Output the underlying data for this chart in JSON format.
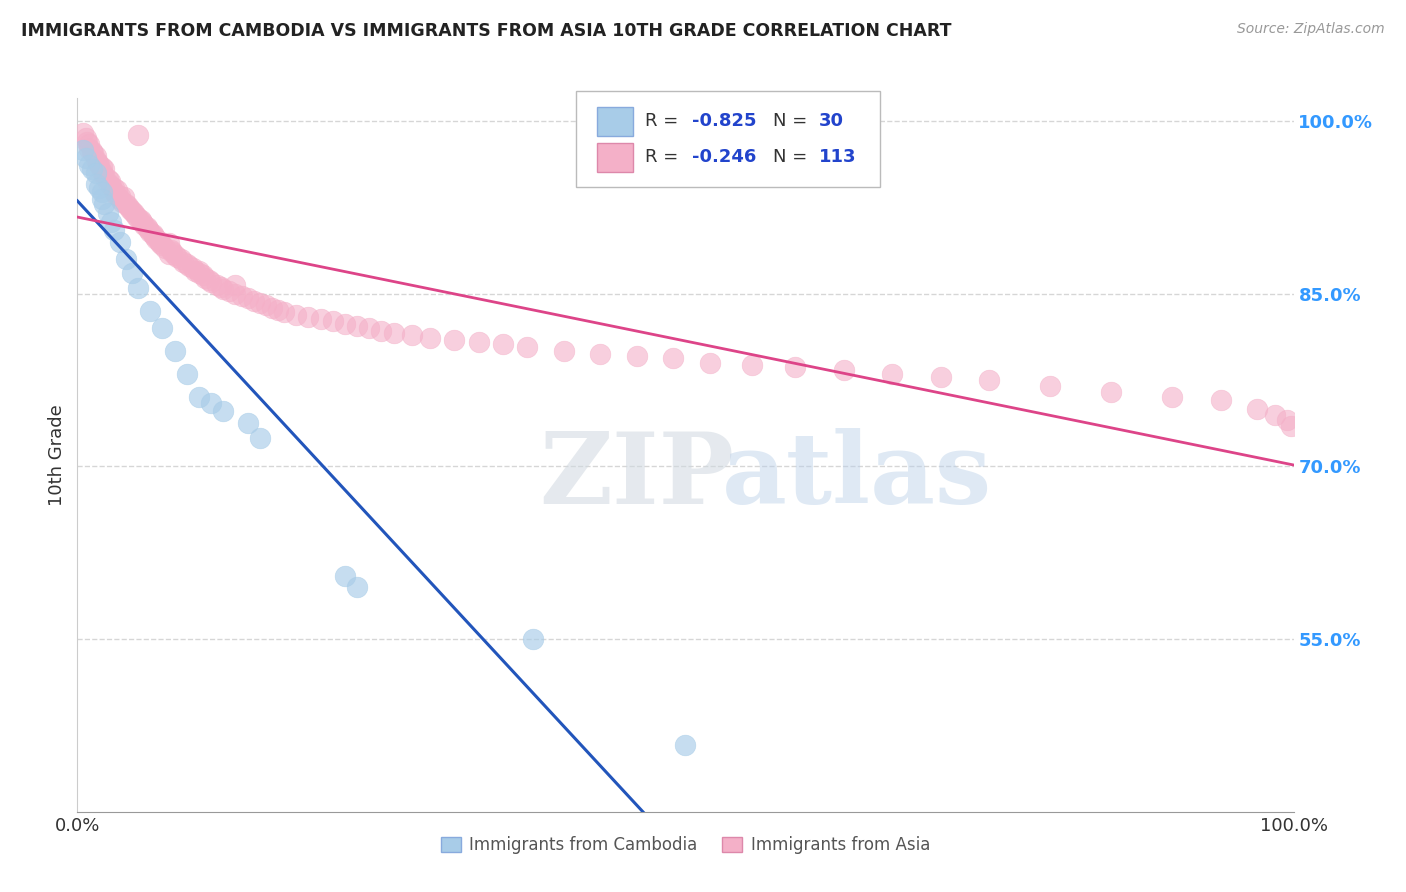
{
  "title": "IMMIGRANTS FROM CAMBODIA VS IMMIGRANTS FROM ASIA 10TH GRADE CORRELATION CHART",
  "source": "Source: ZipAtlas.com",
  "ylabel": "10th Grade",
  "R_blue": -0.825,
  "N_blue": 30,
  "R_pink": -0.246,
  "N_pink": 113,
  "blue_color": "#a8cce8",
  "pink_color": "#f4b0c8",
  "blue_line_color": "#2255bb",
  "pink_line_color": "#dd4488",
  "watermark_ZIP": "ZIP",
  "watermark_atlas": "atlas",
  "background_color": "#ffffff",
  "grid_color": "#cccccc",
  "legend_blue_label": "Immigrants from Cambodia",
  "legend_pink_label": "Immigrants from Asia",
  "xmin": 0.0,
  "xmax": 1.0,
  "ymin": 0.4,
  "ymax": 1.02,
  "yticks": [
    0.55,
    0.7,
    0.85,
    1.0
  ],
  "ytick_labels": [
    "55.0%",
    "70.0%",
    "85.0%",
    "100.0%"
  ],
  "blue_x": [
    0.005,
    0.007,
    0.01,
    0.012,
    0.015,
    0.015,
    0.018,
    0.02,
    0.02,
    0.022,
    0.025,
    0.028,
    0.03,
    0.035,
    0.04,
    0.045,
    0.05,
    0.06,
    0.07,
    0.08,
    0.09,
    0.1,
    0.11,
    0.12,
    0.14,
    0.15,
    0.22,
    0.23,
    0.375,
    0.5
  ],
  "blue_y": [
    0.975,
    0.968,
    0.962,
    0.958,
    0.955,
    0.945,
    0.942,
    0.938,
    0.932,
    0.928,
    0.92,
    0.912,
    0.905,
    0.895,
    0.88,
    0.868,
    0.855,
    0.835,
    0.82,
    0.8,
    0.78,
    0.76,
    0.755,
    0.748,
    0.738,
    0.725,
    0.605,
    0.595,
    0.55,
    0.458
  ],
  "pink_x": [
    0.005,
    0.007,
    0.008,
    0.01,
    0.01,
    0.012,
    0.013,
    0.015,
    0.015,
    0.017,
    0.018,
    0.02,
    0.02,
    0.022,
    0.022,
    0.025,
    0.025,
    0.027,
    0.028,
    0.03,
    0.03,
    0.032,
    0.033,
    0.035,
    0.035,
    0.037,
    0.038,
    0.04,
    0.042,
    0.043,
    0.045,
    0.047,
    0.048,
    0.05,
    0.052,
    0.053,
    0.055,
    0.057,
    0.058,
    0.06,
    0.062,
    0.063,
    0.065,
    0.067,
    0.068,
    0.07,
    0.072,
    0.075,
    0.077,
    0.078,
    0.08,
    0.082,
    0.085,
    0.087,
    0.09,
    0.092,
    0.095,
    0.097,
    0.1,
    0.103,
    0.105,
    0.108,
    0.11,
    0.115,
    0.118,
    0.12,
    0.125,
    0.13,
    0.135,
    0.14,
    0.145,
    0.15,
    0.155,
    0.16,
    0.165,
    0.17,
    0.18,
    0.19,
    0.2,
    0.21,
    0.22,
    0.23,
    0.24,
    0.25,
    0.26,
    0.275,
    0.29,
    0.31,
    0.33,
    0.35,
    0.37,
    0.4,
    0.43,
    0.46,
    0.49,
    0.52,
    0.555,
    0.59,
    0.63,
    0.67,
    0.71,
    0.75,
    0.8,
    0.85,
    0.9,
    0.94,
    0.97,
    0.985,
    0.995,
    0.998,
    0.05,
    0.075,
    0.1,
    0.13
  ],
  "pink_y": [
    0.99,
    0.985,
    0.982,
    0.98,
    0.976,
    0.974,
    0.972,
    0.97,
    0.966,
    0.964,
    0.962,
    0.96,
    0.956,
    0.958,
    0.952,
    0.95,
    0.946,
    0.948,
    0.944,
    0.942,
    0.938,
    0.936,
    0.94,
    0.935,
    0.932,
    0.93,
    0.934,
    0.928,
    0.926,
    0.924,
    0.922,
    0.92,
    0.918,
    0.916,
    0.914,
    0.912,
    0.91,
    0.908,
    0.906,
    0.904,
    0.902,
    0.9,
    0.898,
    0.896,
    0.894,
    0.892,
    0.89,
    0.894,
    0.888,
    0.886,
    0.884,
    0.882,
    0.88,
    0.878,
    0.876,
    0.874,
    0.872,
    0.87,
    0.868,
    0.866,
    0.864,
    0.862,
    0.86,
    0.858,
    0.856,
    0.854,
    0.852,
    0.85,
    0.848,
    0.846,
    0.844,
    0.842,
    0.84,
    0.838,
    0.836,
    0.834,
    0.832,
    0.83,
    0.828,
    0.826,
    0.824,
    0.822,
    0.82,
    0.818,
    0.816,
    0.814,
    0.812,
    0.81,
    0.808,
    0.806,
    0.804,
    0.8,
    0.798,
    0.796,
    0.794,
    0.79,
    0.788,
    0.786,
    0.784,
    0.78,
    0.778,
    0.775,
    0.77,
    0.765,
    0.76,
    0.758,
    0.75,
    0.745,
    0.74,
    0.735,
    0.988,
    0.885,
    0.87,
    0.858
  ]
}
